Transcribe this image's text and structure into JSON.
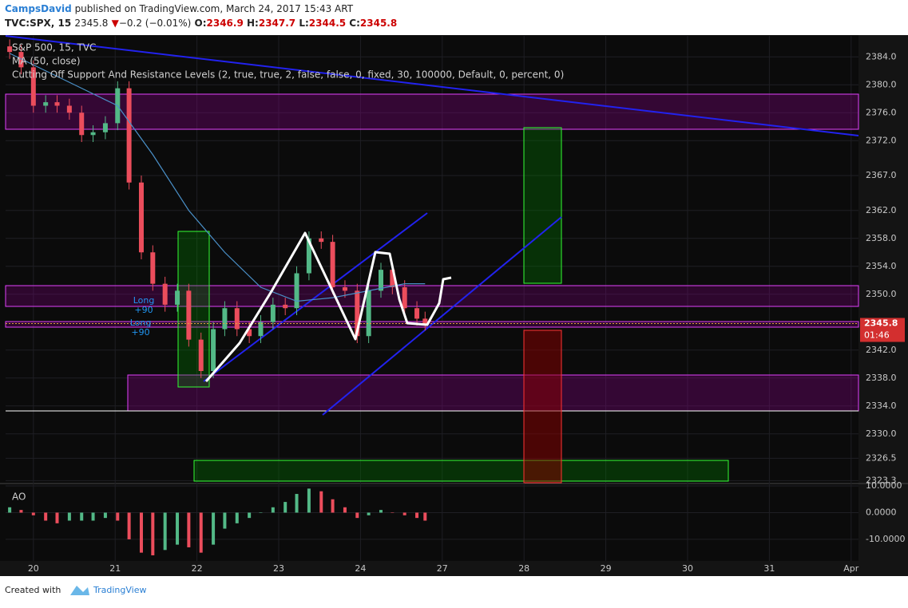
{
  "header": {
    "author": "CampsDavid",
    "published": "published on TradingView.com, March 24, 2017 15:43 ART",
    "symbol": "TVC:SPX, 15",
    "last": "2345.8",
    "arrow": "▼",
    "change": "−0.2 (−0.01%)",
    "ohlc": [
      {
        "label": "O:",
        "value": "2346.9"
      },
      {
        "label": "H:",
        "value": "2347.7"
      },
      {
        "label": "L:",
        "value": "2344.5"
      },
      {
        "label": "C:",
        "value": "2345.8"
      }
    ]
  },
  "indicator": "Cutting Off Support And Resistance Levels (2, true, true, 2, false, false, 0, fixed, 30, 100000, Default, 0, percent, 0)",
  "annotations": [
    {
      "label": "Long",
      "value": "+90"
    },
    {
      "label": "Long",
      "value": "+90"
    }
  ],
  "chart_data": [
    {
      "type": "candlestick",
      "name": "S&P 500, 15, TVC",
      "up_color": "#53b987",
      "down_color": "#eb4d5c",
      "x": [
        -0.29,
        -0.15,
        0,
        0.15,
        0.29,
        0.44,
        0.59,
        0.73,
        0.88,
        1.03,
        1.17,
        1.32,
        1.46,
        1.61,
        1.76,
        1.9,
        2.05,
        2.2,
        2.34,
        2.49,
        2.64,
        2.78,
        2.93,
        3.08,
        3.22,
        3.37,
        3.52,
        3.66,
        3.81,
        3.96,
        4.1,
        4.25,
        4.39,
        4.54,
        4.69,
        4.79
      ],
      "open": [
        2385.5,
        2384.7,
        2382.5,
        2377.0,
        2377.5,
        2377.0,
        2376.0,
        2372.8,
        2373.2,
        2374.5,
        2379.5,
        2366.0,
        2356.0,
        2351.5,
        2348.5,
        2350.5,
        2343.5,
        2339.0,
        2345.0,
        2348.0,
        2345.0,
        2344.0,
        2346.0,
        2348.5,
        2348.0,
        2353.0,
        2358.0,
        2357.5,
        2351.0,
        2350.5,
        2344.0,
        2350.5,
        2353.5,
        2351.0,
        2348.0,
        2346.5
      ],
      "high": [
        2386.5,
        2385.7,
        2383.5,
        2378.5,
        2378.5,
        2378.0,
        2377.0,
        2374.2,
        2375.5,
        2380.5,
        2380.5,
        2367.0,
        2357.0,
        2352.5,
        2351.5,
        2351.5,
        2344.5,
        2346.0,
        2349.0,
        2349.0,
        2346.0,
        2347.0,
        2349.5,
        2349.5,
        2354.0,
        2359.0,
        2359.0,
        2358.5,
        2352.0,
        2351.5,
        2351.5,
        2354.5,
        2354.5,
        2352.0,
        2349.0,
        2347.5
      ],
      "low": [
        2383.7,
        2381.5,
        2376.0,
        2376.0,
        2376.0,
        2375.0,
        2371.8,
        2371.8,
        2372.2,
        2373.5,
        2365.0,
        2355.0,
        2350.5,
        2347.5,
        2347.5,
        2342.5,
        2338.0,
        2338.0,
        2344.0,
        2344.0,
        2343.0,
        2343.0,
        2345.0,
        2347.0,
        2347.0,
        2352.0,
        2356.5,
        2350.0,
        2349.5,
        2343.0,
        2343.0,
        2349.5,
        2350.0,
        2347.0,
        2345.5,
        2344.8
      ],
      "close": [
        2384.7,
        2382.5,
        2377.0,
        2377.5,
        2377.0,
        2376.0,
        2372.8,
        2373.2,
        2374.5,
        2379.5,
        2366.0,
        2356.0,
        2351.5,
        2348.5,
        2350.5,
        2343.5,
        2339.0,
        2345.0,
        2348.0,
        2345.0,
        2344.0,
        2346.0,
        2348.5,
        2348.0,
        2353.0,
        2358.0,
        2357.5,
        2351.0,
        2350.5,
        2344.0,
        2350.5,
        2353.5,
        2351.0,
        2348.0,
        2346.5,
        2345.8
      ],
      "ma": {
        "name": "MA (50, close)",
        "color": "#4a90c8",
        "x": [
          -0.29,
          0.15,
          0.59,
          1.03,
          1.46,
          1.9,
          2.34,
          2.78,
          3.22,
          3.66,
          4.1,
          4.54,
          4.79
        ],
        "values": [
          2384.5,
          2382.0,
          2379.5,
          2377.0,
          2370.0,
          2362.0,
          2356.0,
          2351.0,
          2349.0,
          2349.5,
          2350.5,
          2351.5,
          2351.5
        ]
      },
      "last_price": {
        "value": 2345.8,
        "label": "2345.8"
      },
      "countdown": "01:46",
      "xlim": [
        -0.34,
        10.09
      ],
      "ylim": [
        2323.0,
        2387.0
      ],
      "xticks": [
        {
          "value": 0,
          "label": "20"
        },
        {
          "value": 1,
          "label": "21"
        },
        {
          "value": 2,
          "label": "22"
        },
        {
          "value": 3,
          "label": "23"
        },
        {
          "value": 4,
          "label": "24"
        },
        {
          "value": 5,
          "label": "27"
        },
        {
          "value": 6,
          "label": "28"
        },
        {
          "value": 7,
          "label": "29"
        },
        {
          "value": 8,
          "label": "30"
        },
        {
          "value": 9,
          "label": "31"
        },
        {
          "value": 10,
          "label": "Apr"
        }
      ],
      "yticks": [
        {
          "value": 2384,
          "label": "2384.0"
        },
        {
          "value": 2380,
          "label": "2380.0"
        },
        {
          "value": 2376,
          "label": "2376.0"
        },
        {
          "value": 2372,
          "label": "2372.0"
        },
        {
          "value": 2367,
          "label": "2367.0"
        },
        {
          "value": 2362,
          "label": "2362.0"
        },
        {
          "value": 2358,
          "label": "2358.0"
        },
        {
          "value": 2354,
          "label": "2354.0"
        },
        {
          "value": 2350,
          "label": "2350.0"
        },
        {
          "value": 2342,
          "label": "2342.0"
        },
        {
          "value": 2338,
          "label": "2338.0"
        },
        {
          "value": 2334,
          "label": "2334.0"
        },
        {
          "value": 2330,
          "label": "2330.0"
        },
        {
          "value": 2326.5,
          "label": "2326.5"
        },
        {
          "value": 2323.3,
          "label": "2323.3"
        }
      ],
      "grid": true
    },
    {
      "type": "histogram",
      "name": "AO",
      "up_color": "#53b987",
      "down_color": "#eb4d5c",
      "x": [
        -0.29,
        -0.15,
        0,
        0.15,
        0.29,
        0.44,
        0.59,
        0.73,
        0.88,
        1.03,
        1.17,
        1.32,
        1.46,
        1.61,
        1.76,
        1.9,
        2.05,
        2.2,
        2.34,
        2.49,
        2.64,
        2.78,
        2.93,
        3.08,
        3.22,
        3.37,
        3.52,
        3.66,
        3.81,
        3.96,
        4.1,
        4.25,
        4.39,
        4.54,
        4.69,
        4.79
      ],
      "values": [
        2,
        1,
        -1,
        -3,
        -4,
        -3,
        -3,
        -3,
        -2,
        -3,
        -10,
        -15,
        -16,
        -14,
        -12,
        -13,
        -15,
        -12,
        -6,
        -4,
        -2,
        0,
        2,
        4,
        7,
        9,
        8,
        5,
        2,
        -2,
        -1,
        1,
        0,
        -1,
        -2,
        -3
      ],
      "ylim": [
        -17.2,
        10.6
      ],
      "yticks": [
        {
          "value": 10,
          "label": "10.0000"
        },
        {
          "value": 0,
          "label": "0.0000"
        },
        {
          "value": -10,
          "label": "-10.0000"
        }
      ]
    }
  ],
  "footer": {
    "created": "Created with",
    "brand": "TradingView"
  }
}
